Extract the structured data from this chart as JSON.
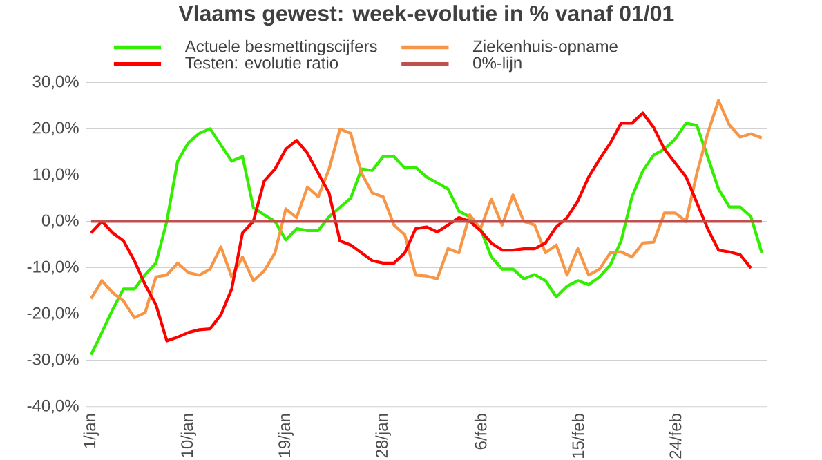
{
  "chart_data": {
    "type": "line",
    "title": "Vlaams gewest:  week-evolutie in %  vanaf 01/01",
    "categories": [
      "1/jan",
      null,
      null,
      null,
      null,
      null,
      null,
      null,
      null,
      "10/jan",
      null,
      null,
      null,
      null,
      null,
      null,
      null,
      null,
      "19/jan",
      null,
      null,
      null,
      null,
      null,
      null,
      null,
      null,
      "28/jan",
      null,
      null,
      null,
      null,
      null,
      null,
      null,
      null,
      "6/feb",
      null,
      null,
      null,
      null,
      null,
      null,
      null,
      null,
      "15/feb",
      null,
      null,
      null,
      null,
      null,
      null,
      null,
      null,
      "24/feb",
      null,
      null,
      null,
      null,
      null,
      null,
      null,
      null
    ],
    "series": [
      {
        "name": "Actuele besmettingscijfers",
        "color": "#33ee00",
        "values": [
          -28.8,
          -24,
          -19,
          -14.6,
          -14.6,
          -11.5,
          -9,
          0,
          13,
          17,
          19,
          20,
          16.5,
          13,
          14,
          3,
          1.4,
          0,
          -4,
          -1.6,
          -2,
          -2,
          1,
          3,
          5,
          11.3,
          11,
          14,
          14,
          11.5,
          11.7,
          9.6,
          8.3,
          7,
          2.2,
          1,
          -1.6,
          -7.7,
          -10.3,
          -10.3,
          -12.4,
          -11.5,
          -12.8,
          -16.3,
          -14,
          -12.8,
          -13.7,
          -12,
          -9.4,
          -4.2,
          5.3,
          10.9,
          14.3,
          15.6,
          17.8,
          21.2,
          20.7,
          13.9,
          7,
          3.1,
          3.1,
          1,
          -6.8
        ]
      },
      {
        "name": "Ziekenhuis-opname",
        "color": "#f79646",
        "values": [
          -16.7,
          -12.8,
          -15.4,
          -17.2,
          -20.8,
          -19.7,
          -12,
          -11.6,
          -9,
          -11.1,
          -11.6,
          -10.3,
          -5.5,
          -12,
          -7.7,
          -12.8,
          -10.7,
          -6.8,
          2.7,
          0.8,
          7.4,
          5.3,
          11.3,
          19.9,
          19,
          10.4,
          6.1,
          5.3,
          -0.8,
          -2.9,
          -11.6,
          -11.8,
          -12.4,
          -5.9,
          -6.8,
          1.4,
          -1.6,
          4.8,
          -0.8,
          5.7,
          0,
          -0.8,
          -6.8,
          -5.1,
          -11.6,
          -5.9,
          -11.6,
          -10.3,
          -6.8,
          -6.6,
          -7.7,
          -4.7,
          -4.5,
          1.8,
          1.8,
          0,
          10.4,
          19,
          26.1,
          20.8,
          18.2,
          18.9,
          18
        ]
      },
      {
        "name": "Testen: evolutie ratio",
        "color": "#ff0000",
        "values": [
          -2.5,
          0,
          -2.5,
          -4.2,
          -8.5,
          -13.7,
          -18,
          -25.8,
          -25,
          -24,
          -23.4,
          -23.2,
          -20.2,
          -14.6,
          -2.5,
          0,
          8.7,
          11.3,
          15.6,
          17.5,
          14.7,
          10.4,
          6.1,
          -4.2,
          -5.1,
          -6.8,
          -8.5,
          -9,
          -9,
          -6.8,
          -1.6,
          -1.2,
          -2.3,
          -0.8,
          0.8,
          0,
          -2,
          -4.7,
          -6.2,
          -6.2,
          -5.9,
          -5.9,
          -4.7,
          -1.2,
          0.8,
          4.4,
          9.6,
          13.4,
          16.9,
          21.2,
          21.2,
          23.4,
          20.3,
          15.6,
          12.6,
          9.6,
          4,
          -1.6,
          -6.2,
          -6.6,
          -7.2,
          -10.1,
          null
        ]
      },
      {
        "name": "0%-lijn",
        "color": "#c0504d",
        "values": [
          0,
          0,
          0,
          0,
          0,
          0,
          0,
          0,
          0,
          0,
          0,
          0,
          0,
          0,
          0,
          0,
          0,
          0,
          0,
          0,
          0,
          0,
          0,
          0,
          0,
          0,
          0,
          0,
          0,
          0,
          0,
          0,
          0,
          0,
          0,
          0,
          0,
          0,
          0,
          0,
          0,
          0,
          0,
          0,
          0,
          0,
          0,
          0,
          0,
          0,
          0,
          0,
          0,
          0,
          0,
          0,
          0,
          0,
          0,
          0,
          0,
          0,
          0
        ]
      }
    ],
    "ylim": [
      -40,
      30
    ],
    "yticks": [
      {
        "value": -40,
        "label": "-40,0%"
      },
      {
        "value": -30,
        "label": "-30,0%"
      },
      {
        "value": -20,
        "label": "-20,0%"
      },
      {
        "value": -10,
        "label": "-10,0%"
      },
      {
        "value": 0,
        "label": "0,0%"
      },
      {
        "value": 10,
        "label": "10,0%"
      },
      {
        "value": 20,
        "label": "20,0%"
      },
      {
        "value": 30,
        "label": "30,0%"
      }
    ],
    "grid": "y",
    "legend": "top left",
    "marker": "none",
    "line_style": "solid"
  }
}
